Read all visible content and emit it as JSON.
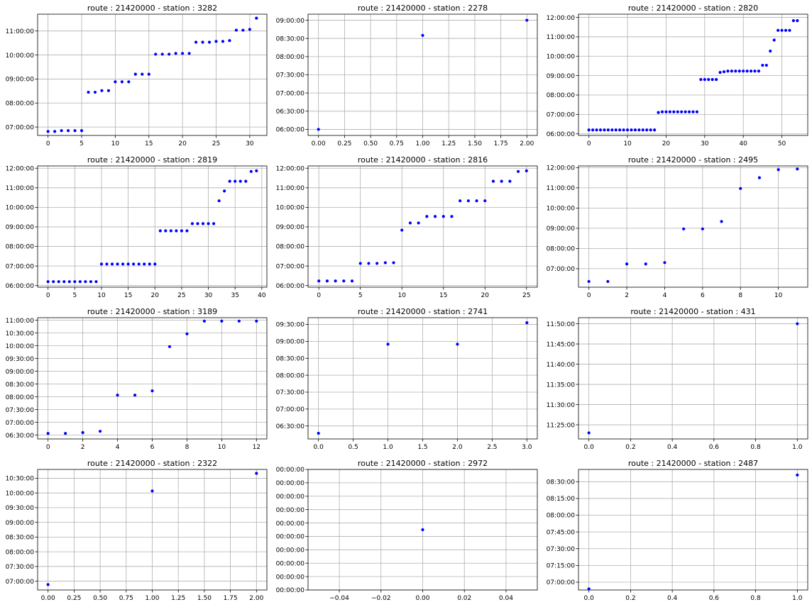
{
  "figure": {
    "accent_color": "#0000ff",
    "grid": true
  },
  "chart_data": [
    {
      "type": "scatter",
      "title": "route : 21420000 - station : 3282",
      "xticks": [
        0,
        5,
        10,
        15,
        20,
        25,
        30
      ],
      "xlim": [
        -1.55,
        32.55
      ],
      "yticks": [
        "07:00:00",
        "08:00:00",
        "09:00:00",
        "10:00:00",
        "11:00:00"
      ],
      "ylim": [
        "06:39:00",
        "11:42:00"
      ],
      "x": [
        0,
        1,
        2,
        3,
        4,
        5,
        6,
        7,
        8,
        9,
        10,
        11,
        12,
        13,
        14,
        15,
        16,
        17,
        18,
        19,
        20,
        21,
        22,
        23,
        24,
        25,
        26,
        27,
        28,
        29,
        30,
        31
      ],
      "y": [
        "06:49:00",
        "06:49:00",
        "06:51:00",
        "06:51:00",
        "06:51:00",
        "06:51:00",
        "08:27:00",
        "08:27:00",
        "08:31:00",
        "08:31:00",
        "08:53:00",
        "08:53:00",
        "08:53:00",
        "09:12:00",
        "09:12:00",
        "09:12:00",
        "10:02:00",
        "10:02:00",
        "10:02:00",
        "10:04:00",
        "10:04:00",
        "10:04:00",
        "10:32:00",
        "10:32:00",
        "10:32:00",
        "10:34:00",
        "10:34:00",
        "10:36:00",
        "11:02:00",
        "11:02:00",
        "11:04:00",
        "11:32:00"
      ]
    },
    {
      "type": "scatter",
      "title": "route : 21420000 - station : 2278",
      "xticks": [
        "0.00",
        "0.25",
        "0.50",
        "0.75",
        "1.00",
        "1.25",
        "1.50",
        "1.75",
        "2.00"
      ],
      "xlim": [
        -0.1,
        2.1
      ],
      "yticks": [
        "06:00:00",
        "06:30:00",
        "07:00:00",
        "07:30:00",
        "08:00:00",
        "08:30:00",
        "09:00:00"
      ],
      "ylim": [
        "05:50:00",
        "09:10:00"
      ],
      "x": [
        0,
        1,
        2
      ],
      "y": [
        "06:00:00",
        "08:35:00",
        "09:00:00"
      ]
    },
    {
      "type": "scatter",
      "title": "route : 21420000 - station : 2820",
      "xticks": [
        0,
        10,
        20,
        30,
        40,
        50
      ],
      "xlim": [
        -2.7,
        56.7
      ],
      "yticks": [
        "06:00:00",
        "07:00:00",
        "08:00:00",
        "09:00:00",
        "10:00:00",
        "11:00:00",
        "12:00:00"
      ],
      "ylim": [
        "05:55:00",
        "12:10:00"
      ],
      "x": [
        0,
        1,
        2,
        3,
        4,
        5,
        6,
        7,
        8,
        9,
        10,
        11,
        12,
        13,
        14,
        15,
        16,
        17,
        18,
        19,
        20,
        21,
        22,
        23,
        24,
        25,
        26,
        27,
        28,
        29,
        30,
        31,
        32,
        33,
        34,
        35,
        36,
        37,
        38,
        39,
        40,
        41,
        42,
        43,
        44,
        45,
        46,
        47,
        48,
        49,
        50,
        51,
        52,
        53,
        54
      ],
      "y": [
        "06:12:00",
        "06:12:00",
        "06:12:00",
        "06:12:00",
        "06:12:00",
        "06:12:00",
        "06:12:00",
        "06:12:00",
        "06:12:00",
        "06:12:00",
        "06:12:00",
        "06:12:00",
        "06:12:00",
        "06:12:00",
        "06:12:00",
        "06:12:00",
        "06:12:00",
        "06:12:00",
        "07:06:00",
        "07:08:00",
        "07:08:00",
        "07:08:00",
        "07:08:00",
        "07:08:00",
        "07:08:00",
        "07:08:00",
        "07:08:00",
        "07:08:00",
        "07:08:00",
        "08:48:00",
        "08:48:00",
        "08:48:00",
        "08:48:00",
        "08:48:00",
        "09:10:00",
        "09:12:00",
        "09:14:00",
        "09:14:00",
        "09:14:00",
        "09:14:00",
        "09:14:00",
        "09:14:00",
        "09:14:00",
        "09:14:00",
        "09:14:00",
        "09:32:00",
        "09:32:00",
        "10:16:00",
        "10:50:00",
        "11:20:00",
        "11:20:00",
        "11:20:00",
        "11:20:00",
        "11:50:00",
        "11:50:00"
      ]
    },
    {
      "type": "scatter",
      "title": "route : 21420000 - station : 2819",
      "xticks": [
        0,
        5,
        10,
        15,
        20,
        25,
        30,
        35,
        40
      ],
      "xlim": [
        -1.95,
        40.95
      ],
      "yticks": [
        "06:00:00",
        "07:00:00",
        "08:00:00",
        "09:00:00",
        "10:00:00",
        "11:00:00",
        "12:00:00"
      ],
      "ylim": [
        "05:55:00",
        "12:07:00"
      ],
      "x": [
        0,
        1,
        2,
        3,
        4,
        5,
        6,
        7,
        8,
        9,
        10,
        11,
        12,
        13,
        14,
        15,
        16,
        17,
        18,
        19,
        20,
        21,
        22,
        23,
        24,
        25,
        26,
        27,
        28,
        29,
        30,
        31,
        32,
        33,
        34,
        35,
        36,
        37,
        38,
        39
      ],
      "y": [
        "06:12:00",
        "06:12:00",
        "06:12:00",
        "06:12:00",
        "06:12:00",
        "06:12:00",
        "06:12:00",
        "06:12:00",
        "06:12:00",
        "06:12:00",
        "07:06:00",
        "07:06:00",
        "07:06:00",
        "07:06:00",
        "07:06:00",
        "07:06:00",
        "07:06:00",
        "07:06:00",
        "07:06:00",
        "07:06:00",
        "07:06:00",
        "08:48:00",
        "08:48:00",
        "08:48:00",
        "08:48:00",
        "08:48:00",
        "08:48:00",
        "09:10:00",
        "09:10:00",
        "09:10:00",
        "09:10:00",
        "09:10:00",
        "10:20:00",
        "10:50:00",
        "11:20:00",
        "11:20:00",
        "11:20:00",
        "11:20:00",
        "11:50:00",
        "11:52:00"
      ]
    },
    {
      "type": "scatter",
      "title": "route : 21420000 - station : 2816",
      "xticks": [
        0,
        5,
        10,
        15,
        20,
        25
      ],
      "xlim": [
        -1.3,
        26.3
      ],
      "yticks": [
        "06:00:00",
        "07:00:00",
        "08:00:00",
        "09:00:00",
        "10:00:00",
        "11:00:00",
        "12:00:00"
      ],
      "ylim": [
        "05:55:00",
        "12:07:00"
      ],
      "x": [
        0,
        1,
        2,
        3,
        4,
        5,
        6,
        7,
        8,
        9,
        10,
        11,
        12,
        13,
        14,
        15,
        16,
        17,
        18,
        19,
        20,
        21,
        22,
        23,
        24,
        25
      ],
      "y": [
        "06:14:00",
        "06:14:00",
        "06:14:00",
        "06:14:00",
        "06:14:00",
        "07:08:00",
        "07:08:00",
        "07:08:00",
        "07:10:00",
        "07:10:00",
        "08:50:00",
        "09:12:00",
        "09:12:00",
        "09:32:00",
        "09:32:00",
        "09:32:00",
        "09:32:00",
        "10:20:00",
        "10:20:00",
        "10:20:00",
        "10:20:00",
        "11:20:00",
        "11:20:00",
        "11:20:00",
        "11:50:00",
        "11:52:00"
      ]
    },
    {
      "type": "scatter",
      "title": "route : 21420000 - station : 2495",
      "xticks": [
        0,
        2,
        4,
        6,
        8,
        10
      ],
      "xlim": [
        -0.55,
        11.55
      ],
      "yticks": [
        "07:00:00",
        "08:00:00",
        "09:00:00",
        "10:00:00",
        "11:00:00",
        "12:00:00"
      ],
      "ylim": [
        "06:05:00",
        "12:05:00"
      ],
      "x": [
        0,
        1,
        2,
        3,
        4,
        5,
        6,
        7,
        8,
        9,
        10,
        11
      ],
      "y": [
        "06:22:00",
        "06:22:00",
        "07:14:00",
        "07:14:00",
        "07:18:00",
        "08:58:00",
        "08:58:00",
        "09:20:00",
        "10:58:00",
        "11:30:00",
        "11:54:00",
        "11:56:00"
      ]
    },
    {
      "type": "scatter",
      "title": "route : 21420000 - station : 3189",
      "xticks": [
        0,
        2,
        4,
        6,
        8,
        10,
        12
      ],
      "xlim": [
        -0.6,
        12.6
      ],
      "yticks": [
        "06:30:00",
        "07:00:00",
        "07:30:00",
        "08:00:00",
        "08:30:00",
        "09:00:00",
        "09:30:00",
        "10:00:00",
        "10:30:00",
        "11:00:00"
      ],
      "ylim": [
        "06:21:00",
        "11:06:00"
      ],
      "x": [
        0,
        1,
        2,
        3,
        4,
        5,
        6,
        7,
        8,
        9,
        10,
        11,
        12
      ],
      "y": [
        "06:34:00",
        "06:34:00",
        "06:36:00",
        "06:39:00",
        "08:04:00",
        "08:04:00",
        "08:14:00",
        "09:58:00",
        "10:28:00",
        "10:58:00",
        "10:58:00",
        "10:58:00",
        "10:58:00"
      ]
    },
    {
      "type": "scatter",
      "title": "route : 21420000 - station : 2741",
      "xticks": [
        "0.0",
        "0.5",
        "1.0",
        "1.5",
        "2.0",
        "2.5",
        "3.0"
      ],
      "xlim": [
        -0.15,
        3.15
      ],
      "yticks": [
        "06:30:00",
        "07:00:00",
        "07:30:00",
        "08:00:00",
        "08:30:00",
        "09:00:00",
        "09:30:00"
      ],
      "ylim": [
        "06:07:00",
        "09:42:00"
      ],
      "x": [
        0,
        1,
        2,
        3
      ],
      "y": [
        "06:17:00",
        "08:55:00",
        "08:55:00",
        "09:33:00"
      ]
    },
    {
      "type": "scatter",
      "title": "route : 21420000 - station : 431",
      "xticks": [
        "0.0",
        "0.2",
        "0.4",
        "0.6",
        "0.8",
        "1.0"
      ],
      "xlim": [
        -0.05,
        1.05
      ],
      "yticks": [
        "11:25:00",
        "11:30:00",
        "11:35:00",
        "11:40:00",
        "11:45:00",
        "11:50:00"
      ],
      "ylim": [
        "11:21:30",
        "11:51:30"
      ],
      "x": [
        0,
        1
      ],
      "y": [
        "11:23:00",
        "11:50:00"
      ]
    },
    {
      "type": "scatter",
      "title": "route : 21420000 - station : 2322",
      "xticks": [
        "0.00",
        "0.25",
        "0.50",
        "0.75",
        "1.00",
        "1.25",
        "1.50",
        "1.75",
        "2.00"
      ],
      "xlim": [
        -0.1,
        2.1
      ],
      "yticks": [
        "07:00:00",
        "07:30:00",
        "08:00:00",
        "08:30:00",
        "09:00:00",
        "09:30:00",
        "10:00:00",
        "10:30:00"
      ],
      "ylim": [
        "06:42:00",
        "10:48:00"
      ],
      "x": [
        0,
        1,
        2
      ],
      "y": [
        "06:53:00",
        "10:04:00",
        "10:40:00"
      ]
    },
    {
      "type": "scatter",
      "title": "route : 21420000 - station : 2972",
      "xticks": [
        "−0.04",
        "−0.02",
        "0.00",
        "0.02",
        "0.04"
      ],
      "xlim": [
        -0.055,
        0.055
      ],
      "yticks": [
        "00:00:00",
        "00:00:00",
        "00:00:00",
        "00:00:00",
        "00:00:00",
        "00:00:00",
        "00:00:00",
        "00:00:00",
        "00:00:00",
        "00:00:00"
      ],
      "ylim": [
        -0.055,
        0.055
      ],
      "x": [
        0
      ],
      "y": [
        0
      ]
    },
    {
      "type": "scatter",
      "title": "route : 21420000 - station : 2487",
      "xticks": [
        "0.0",
        "0.2",
        "0.4",
        "0.6",
        "0.8",
        "1.0"
      ],
      "xlim": [
        -0.05,
        1.05
      ],
      "yticks": [
        "07:00:00",
        "07:15:00",
        "07:30:00",
        "07:45:00",
        "08:00:00",
        "08:15:00",
        "08:30:00"
      ],
      "ylim": [
        "06:53:00",
        "08:41:00"
      ],
      "x": [
        0,
        1
      ],
      "y": [
        "06:54:00",
        "08:36:00"
      ]
    }
  ]
}
